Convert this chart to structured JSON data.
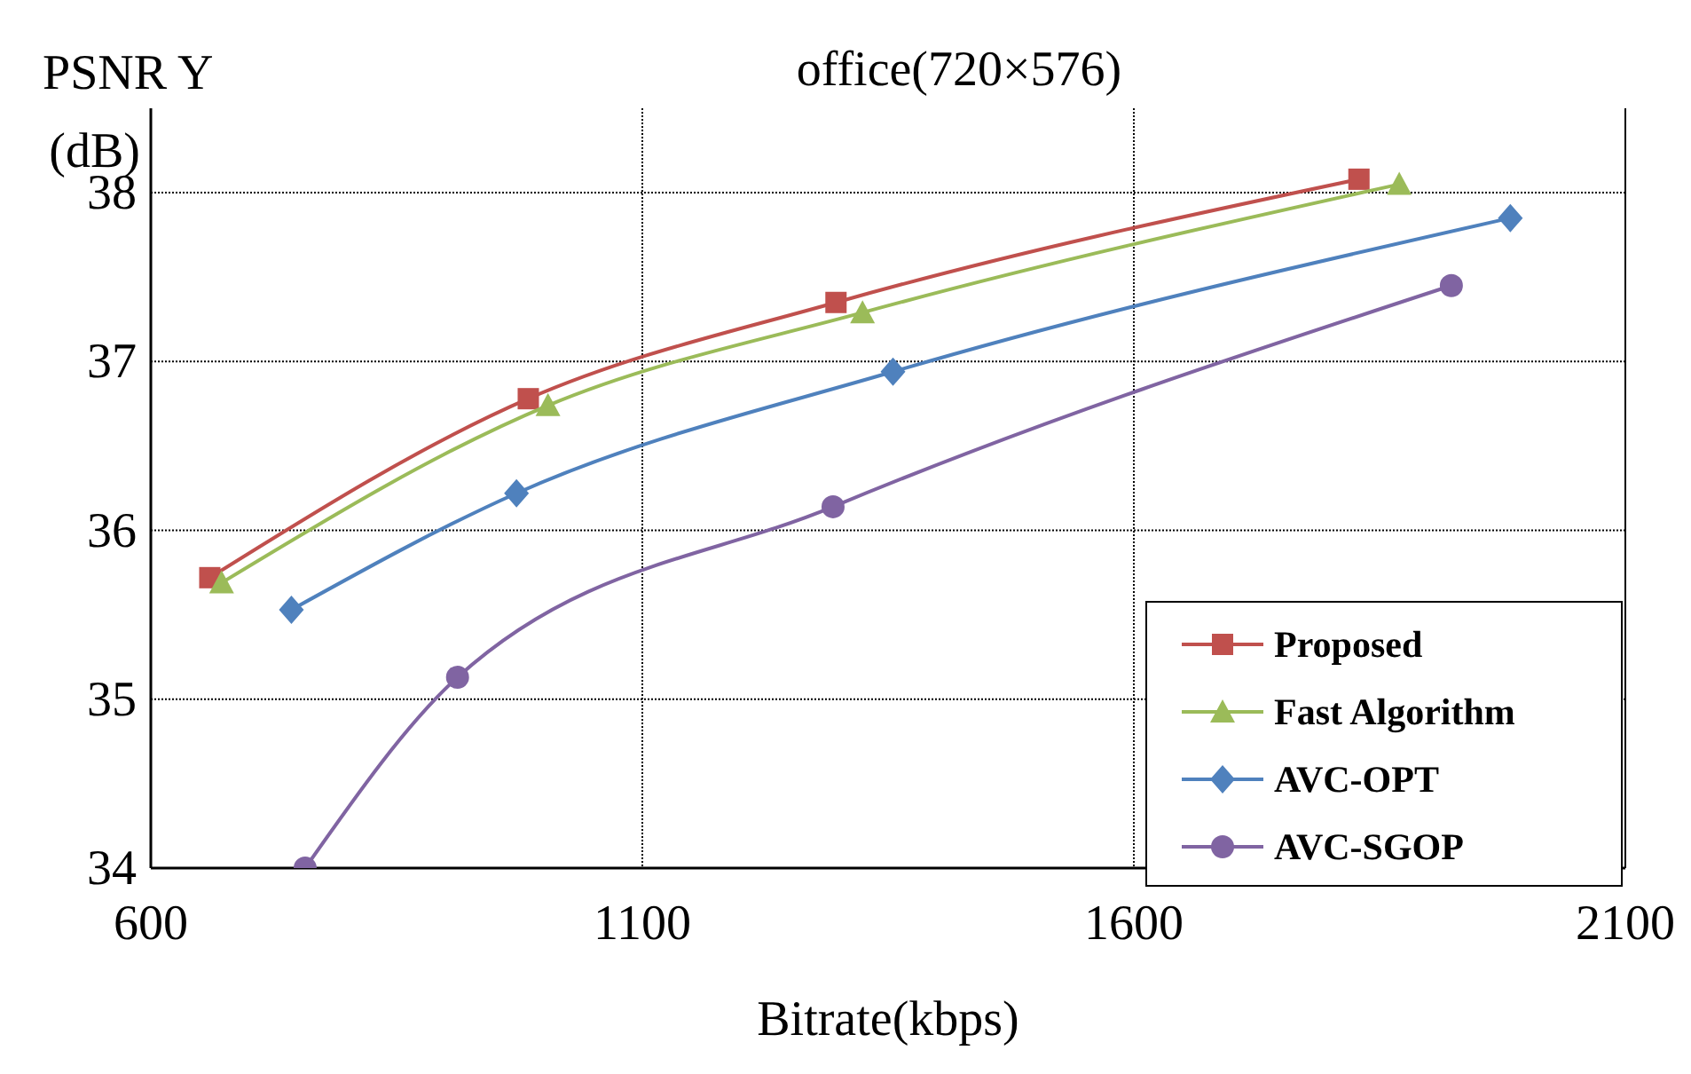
{
  "chart_data": {
    "type": "line",
    "title": "office(720×576)",
    "xlabel": "Bitrate(kbps)",
    "ylabel": "PSNR Y (dB)",
    "xlim": [
      600,
      2100
    ],
    "xticks": [
      600,
      1100,
      1600,
      2100
    ],
    "ylim": [
      34,
      38.5
    ],
    "yticks": [
      34,
      35,
      36,
      37,
      38
    ],
    "grid": true,
    "legend": "bottom right",
    "series": [
      {
        "name": "Proposed",
        "color": "#c0504d",
        "marker": "square",
        "x": [
          660,
          984,
          1297,
          1829
        ],
        "values": [
          35.72,
          36.78,
          37.35,
          38.08
        ]
      },
      {
        "name": "Fast Algorithm",
        "color": "#9bbb59",
        "marker": "triangle",
        "x": [
          672,
          1004,
          1324,
          1870
        ],
        "values": [
          35.69,
          36.74,
          37.29,
          38.05
        ]
      },
      {
        "name": "AVC-OPT",
        "color": "#4f81bd",
        "marker": "diamond",
        "x": [
          743,
          972,
          1355,
          1983
        ],
        "values": [
          35.53,
          36.22,
          36.94,
          37.85
        ]
      },
      {
        "name": "AVC-SGOP",
        "color": "#8064a2",
        "marker": "circle",
        "x": [
          757,
          912,
          1294,
          1923
        ],
        "values": [
          34.0,
          35.13,
          36.14,
          37.45
        ]
      }
    ]
  }
}
